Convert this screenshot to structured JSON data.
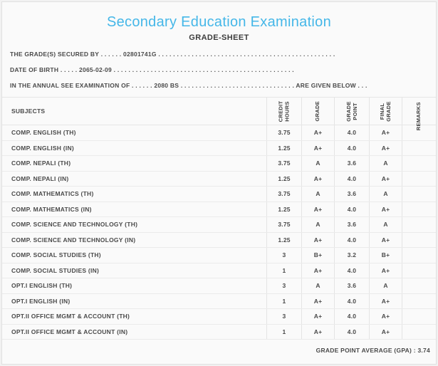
{
  "header": {
    "title": "Secondary Education Examination",
    "subtitle": "GRADE-SHEET",
    "info_lines": [
      {
        "label": "THE GRADE(S) SECURED BY",
        "dots_before": " . . . . . . ",
        "value": "02801741G",
        "dots_after": " . . . . . . . . . . . . . . . . . . . . . . . . . . . . . . . . . . . . . . . . . . . . . . . .",
        "suffix": ""
      },
      {
        "label": "DATE OF BIRTH",
        "dots_before": " . . . . . ",
        "value": "2065-02-09",
        "dots_after": " . . . . . . . . . . . . . . . . . . . . . . . . . . . . . . . . . . . . . . . . . . . . . . . . .",
        "suffix": ""
      },
      {
        "label": "IN THE ANNUAL SEE EXAMINATION OF",
        "dots_before": " . . . . . . ",
        "value": "2080 BS",
        "dots_after": " . . . . . . . . . . . . . . . . . . . . . . . . . . . . . . . ",
        "suffix": "ARE GIVEN BELOW . . ."
      }
    ]
  },
  "table": {
    "columns": [
      {
        "key": "subject",
        "label": "SUBJECTS"
      },
      {
        "key": "credit_hours",
        "label": "CREDIT\nHOURS"
      },
      {
        "key": "grade",
        "label": "GRADE"
      },
      {
        "key": "grade_point",
        "label": "GRADE\nPOINT"
      },
      {
        "key": "final_grade",
        "label": "FINAL\nGRADE"
      },
      {
        "key": "remarks",
        "label": "REMARKS"
      }
    ],
    "rows": [
      {
        "subject": "COMP. ENGLISH (TH)",
        "credit_hours": "3.75",
        "grade": "A+",
        "grade_point": "4.0",
        "final_grade": "A+",
        "remarks": ""
      },
      {
        "subject": "COMP. ENGLISH (IN)",
        "credit_hours": "1.25",
        "grade": "A+",
        "grade_point": "4.0",
        "final_grade": "A+",
        "remarks": ""
      },
      {
        "subject": "COMP. NEPALI (TH)",
        "credit_hours": "3.75",
        "grade": "A",
        "grade_point": "3.6",
        "final_grade": "A",
        "remarks": ""
      },
      {
        "subject": "COMP. NEPALI (IN)",
        "credit_hours": "1.25",
        "grade": "A+",
        "grade_point": "4.0",
        "final_grade": "A+",
        "remarks": ""
      },
      {
        "subject": "COMP. MATHEMATICS (TH)",
        "credit_hours": "3.75",
        "grade": "A",
        "grade_point": "3.6",
        "final_grade": "A",
        "remarks": ""
      },
      {
        "subject": "COMP. MATHEMATICS (IN)",
        "credit_hours": "1.25",
        "grade": "A+",
        "grade_point": "4.0",
        "final_grade": "A+",
        "remarks": ""
      },
      {
        "subject": "COMP. SCIENCE AND TECHNOLOGY (TH)",
        "credit_hours": "3.75",
        "grade": "A",
        "grade_point": "3.6",
        "final_grade": "A",
        "remarks": ""
      },
      {
        "subject": "COMP. SCIENCE AND TECHNOLOGY (IN)",
        "credit_hours": "1.25",
        "grade": "A+",
        "grade_point": "4.0",
        "final_grade": "A+",
        "remarks": ""
      },
      {
        "subject": "COMP. SOCIAL STUDIES (TH)",
        "credit_hours": "3",
        "grade": "B+",
        "grade_point": "3.2",
        "final_grade": "B+",
        "remarks": ""
      },
      {
        "subject": "COMP. SOCIAL STUDIES (IN)",
        "credit_hours": "1",
        "grade": "A+",
        "grade_point": "4.0",
        "final_grade": "A+",
        "remarks": ""
      },
      {
        "subject": "OPT.I ENGLISH (TH)",
        "credit_hours": "3",
        "grade": "A",
        "grade_point": "3.6",
        "final_grade": "A",
        "remarks": ""
      },
      {
        "subject": "OPT.I ENGLISH (IN)",
        "credit_hours": "1",
        "grade": "A+",
        "grade_point": "4.0",
        "final_grade": "A+",
        "remarks": ""
      },
      {
        "subject": "OPT.II OFFICE MGMT & ACCOUNT (TH)",
        "credit_hours": "3",
        "grade": "A+",
        "grade_point": "4.0",
        "final_grade": "A+",
        "remarks": ""
      },
      {
        "subject": "OPT.II OFFICE MGMT & ACCOUNT (IN)",
        "credit_hours": "1",
        "grade": "A+",
        "grade_point": "4.0",
        "final_grade": "A+",
        "remarks": ""
      }
    ]
  },
  "footer": {
    "gpa_label": "GRADE POINT AVERAGE (GPA) : ",
    "gpa_value": "3.74"
  },
  "colors": {
    "title_accent": "#45b7e8",
    "text": "#4a4a4a",
    "page_background": "#fafafa",
    "border": "#e0e0e0"
  }
}
